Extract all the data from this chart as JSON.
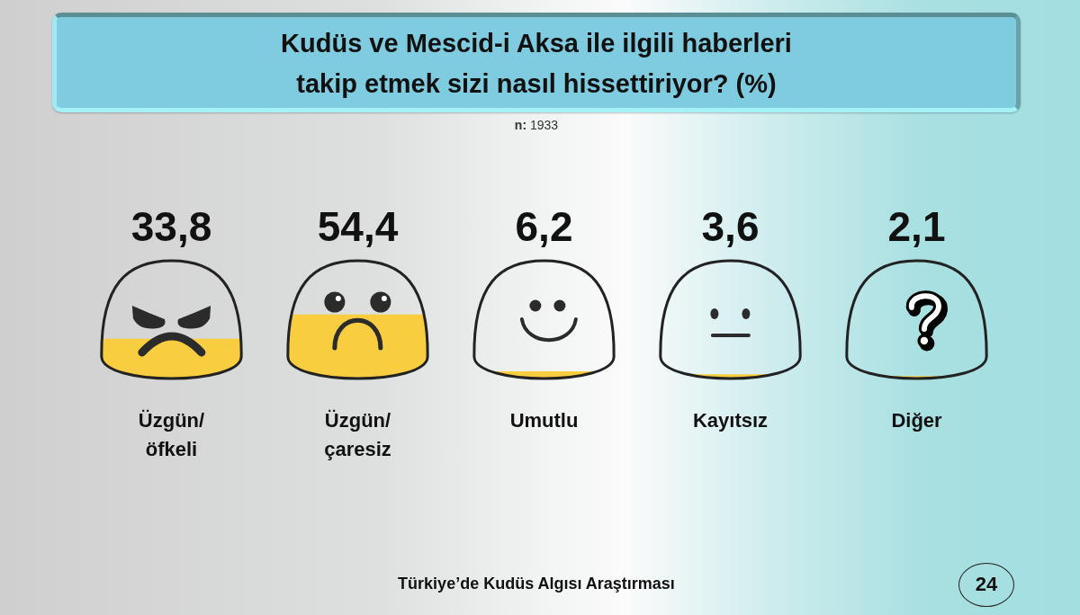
{
  "chart_data": {
    "type": "bar",
    "title": "Kudüs ve Mescid-i Aksa ile ilgili haberleri\ntakip etmek sizi nasıl hissettiriyor? (%)",
    "subtitle": "n: 1933",
    "categories": [
      "Üzgün/öfkeli",
      "Üzgün/çaresiz",
      "Umutlu",
      "Kayıtsız",
      "Diğer"
    ],
    "values": [
      33.8,
      54.4,
      6.2,
      3.6,
      2.1
    ],
    "value_labels": [
      "33,8",
      "54,4",
      "6,2",
      "3,6",
      "2,1"
    ],
    "color": "#f8cd3f",
    "ylim": [
      0,
      100
    ],
    "tick_labels": "x",
    "annotations": [
      "Türkiye’de Kudüs Algısı Araştırması",
      "24"
    ]
  }
}
